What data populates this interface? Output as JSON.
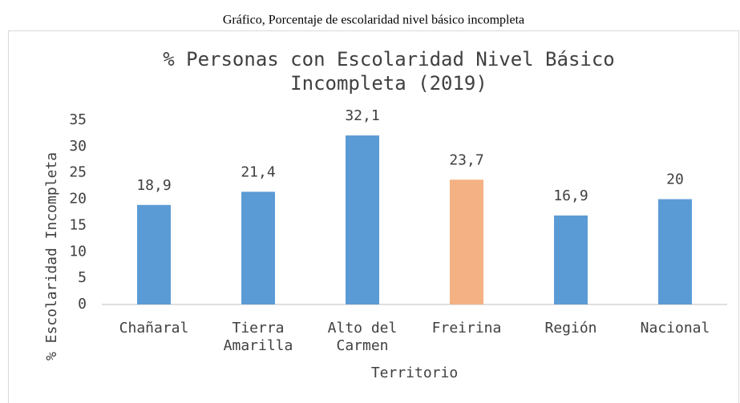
{
  "caption": "Gráfico, Porcentaje de escolaridad nivel básico incompleta",
  "chart_data": {
    "type": "bar",
    "title": "% Personas con Escolaridad Nivel Básico Incompleta (2019)",
    "x_label": "Territorio",
    "y_label": "% Escolaridad Incompleta",
    "categories": [
      "Chañaral",
      "Tierra Amarilla",
      "Alto del Carmen",
      "Freirina",
      "Región",
      "Nacional"
    ],
    "values": [
      18.9,
      21.4,
      32.1,
      23.7,
      16.9,
      20
    ],
    "value_labels": [
      "18,9",
      "21,4",
      "32,1",
      "23,7",
      "16,9",
      "20"
    ],
    "colors": [
      "#5b9bd5",
      "#5b9bd5",
      "#5b9bd5",
      "#f4b183",
      "#5b9bd5",
      "#5b9bd5"
    ],
    "ylim": [
      0,
      35
    ],
    "yticks": [
      0,
      5,
      10,
      15,
      20,
      25,
      30,
      35
    ],
    "grid": false
  }
}
